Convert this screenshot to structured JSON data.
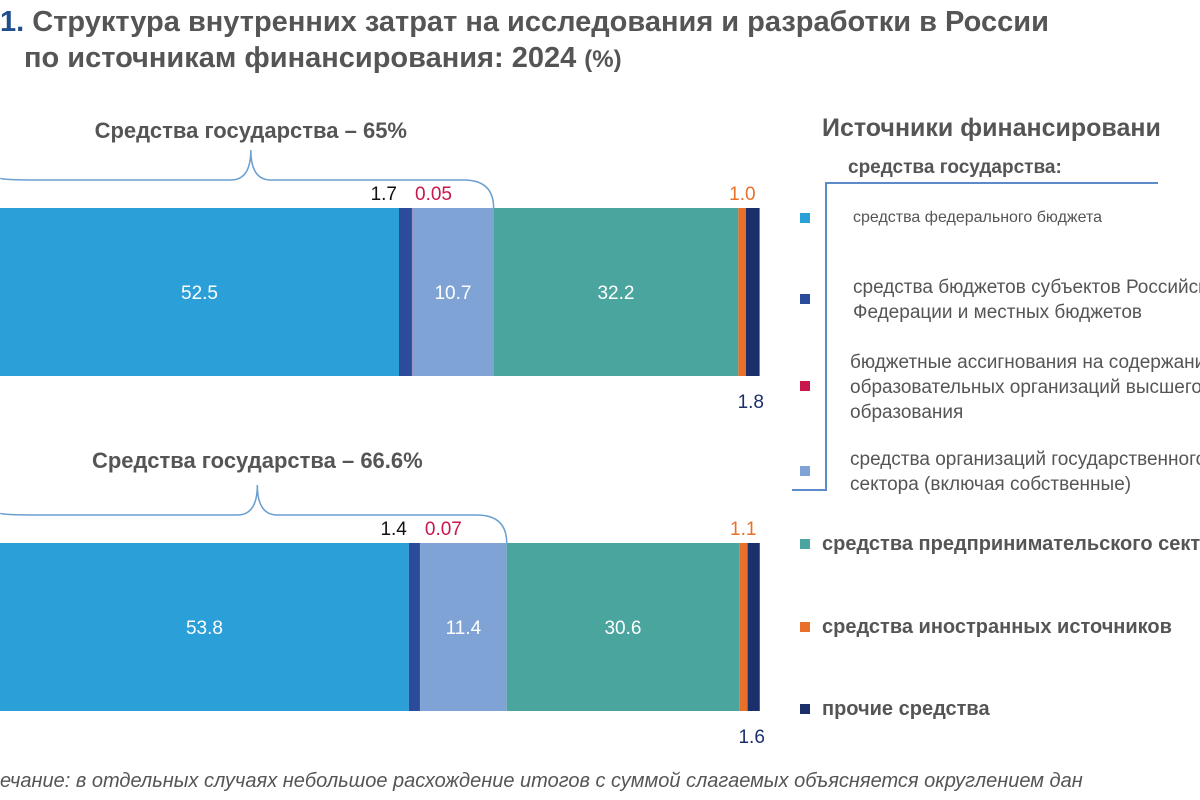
{
  "title": {
    "number": "1.",
    "line1": "Структура внутренних затрат на исследования и разработки в России",
    "line2": "по источникам финансирования: 2024",
    "unit": "(%)"
  },
  "chart_data": {
    "type": "bar",
    "orientation": "horizontal-stacked",
    "title": "Структура внутренних затрат на исследования и разработки в России по источникам финансирования: 2024 (%)",
    "xlim": [
      0,
      100
    ],
    "series_names": [
      "средства федерального бюджета",
      "средства бюджетов субъектов Российской Федерации и местных бюджетов",
      "бюджетные ассигнования на содержание образовательных организаций высшего образования",
      "средства организаций государственного сектора (включая собственные)",
      "средства предпринимательского сектора",
      "средства иностранных источников",
      "прочие средства"
    ],
    "colors": [
      "#2a9fd8",
      "#2b4c9b",
      "#c8174a",
      "#7fa3d4",
      "#4aa59e",
      "#e8702a",
      "#1b2f6b"
    ],
    "bars": [
      {
        "values": [
          52.5,
          1.7,
          0.05,
          10.7,
          32.2,
          1.0,
          1.8
        ],
        "labels": [
          "52.5",
          "1.7",
          "0.05",
          "10.7",
          "32.2",
          "1.0",
          "1.8"
        ],
        "group_label": "Средства государства – 65%"
      },
      {
        "values": [
          53.8,
          1.4,
          0.07,
          11.4,
          30.6,
          1.1,
          1.6
        ],
        "labels": [
          "53.8",
          "1.4",
          "0.07",
          "11.4",
          "30.6",
          "1.1",
          "1.6"
        ],
        "group_label": "Средства государства – 66.6%"
      }
    ]
  },
  "legend": {
    "title": "Источники финансировани",
    "subtitle": "средства государства:",
    "items": [
      {
        "lines": [
          "средства федерального бюджета"
        ]
      },
      {
        "lines": [
          "средства бюджетов субъектов Россий",
          "Федерации и местных бюджетов"
        ]
      },
      {
        "lines": [
          "бюджетные ассигнования на содержан",
          "образовательных организаций высшег",
          "образования"
        ]
      },
      {
        "lines": [
          "средства организаций государственног",
          "сектора (включая собственные)"
        ]
      },
      {
        "lines": [
          "средства предпринимательского с"
        ]
      },
      {
        "lines": [
          "средства иностранных источнико"
        ]
      },
      {
        "lines": [
          "прочие средства"
        ]
      }
    ]
  },
  "note": "ечание: в отдельных случаях небольшое расхождение итогов с суммой слагаемых объясняется округлением дан"
}
